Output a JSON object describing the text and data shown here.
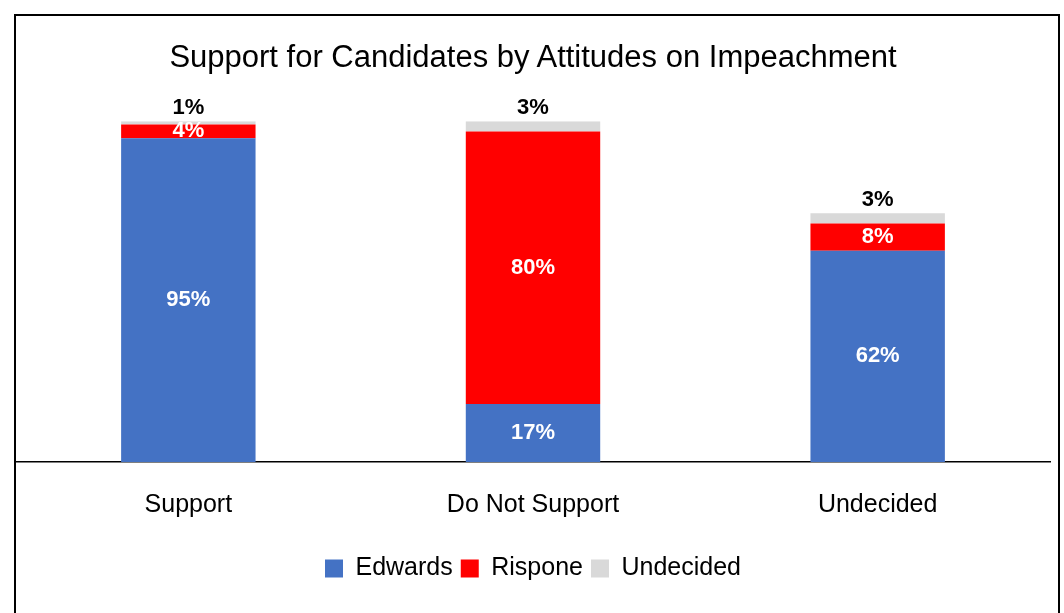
{
  "chart_data": {
    "type": "bar",
    "title": "Support for Candidates by Attitudes on Impeachment",
    "categories": [
      "Support",
      "Do Not Support",
      "Undecided"
    ],
    "series": [
      {
        "name": "Edwards",
        "color": "#4472c4",
        "values": [
          95,
          17,
          62
        ],
        "value_labels": [
          "95%",
          "17%",
          "62%"
        ]
      },
      {
        "name": "Rispone",
        "color": "#ff0000",
        "values": [
          4,
          80,
          8
        ],
        "value_labels": [
          "4%",
          "80%",
          "8%"
        ]
      },
      {
        "name": "Undecided",
        "color": "#d9d9d9",
        "values": [
          1,
          3,
          3
        ],
        "value_labels": [
          "1%",
          "3%",
          "3%"
        ]
      }
    ],
    "stacked": true,
    "grid": false,
    "legend": "bottom"
  }
}
